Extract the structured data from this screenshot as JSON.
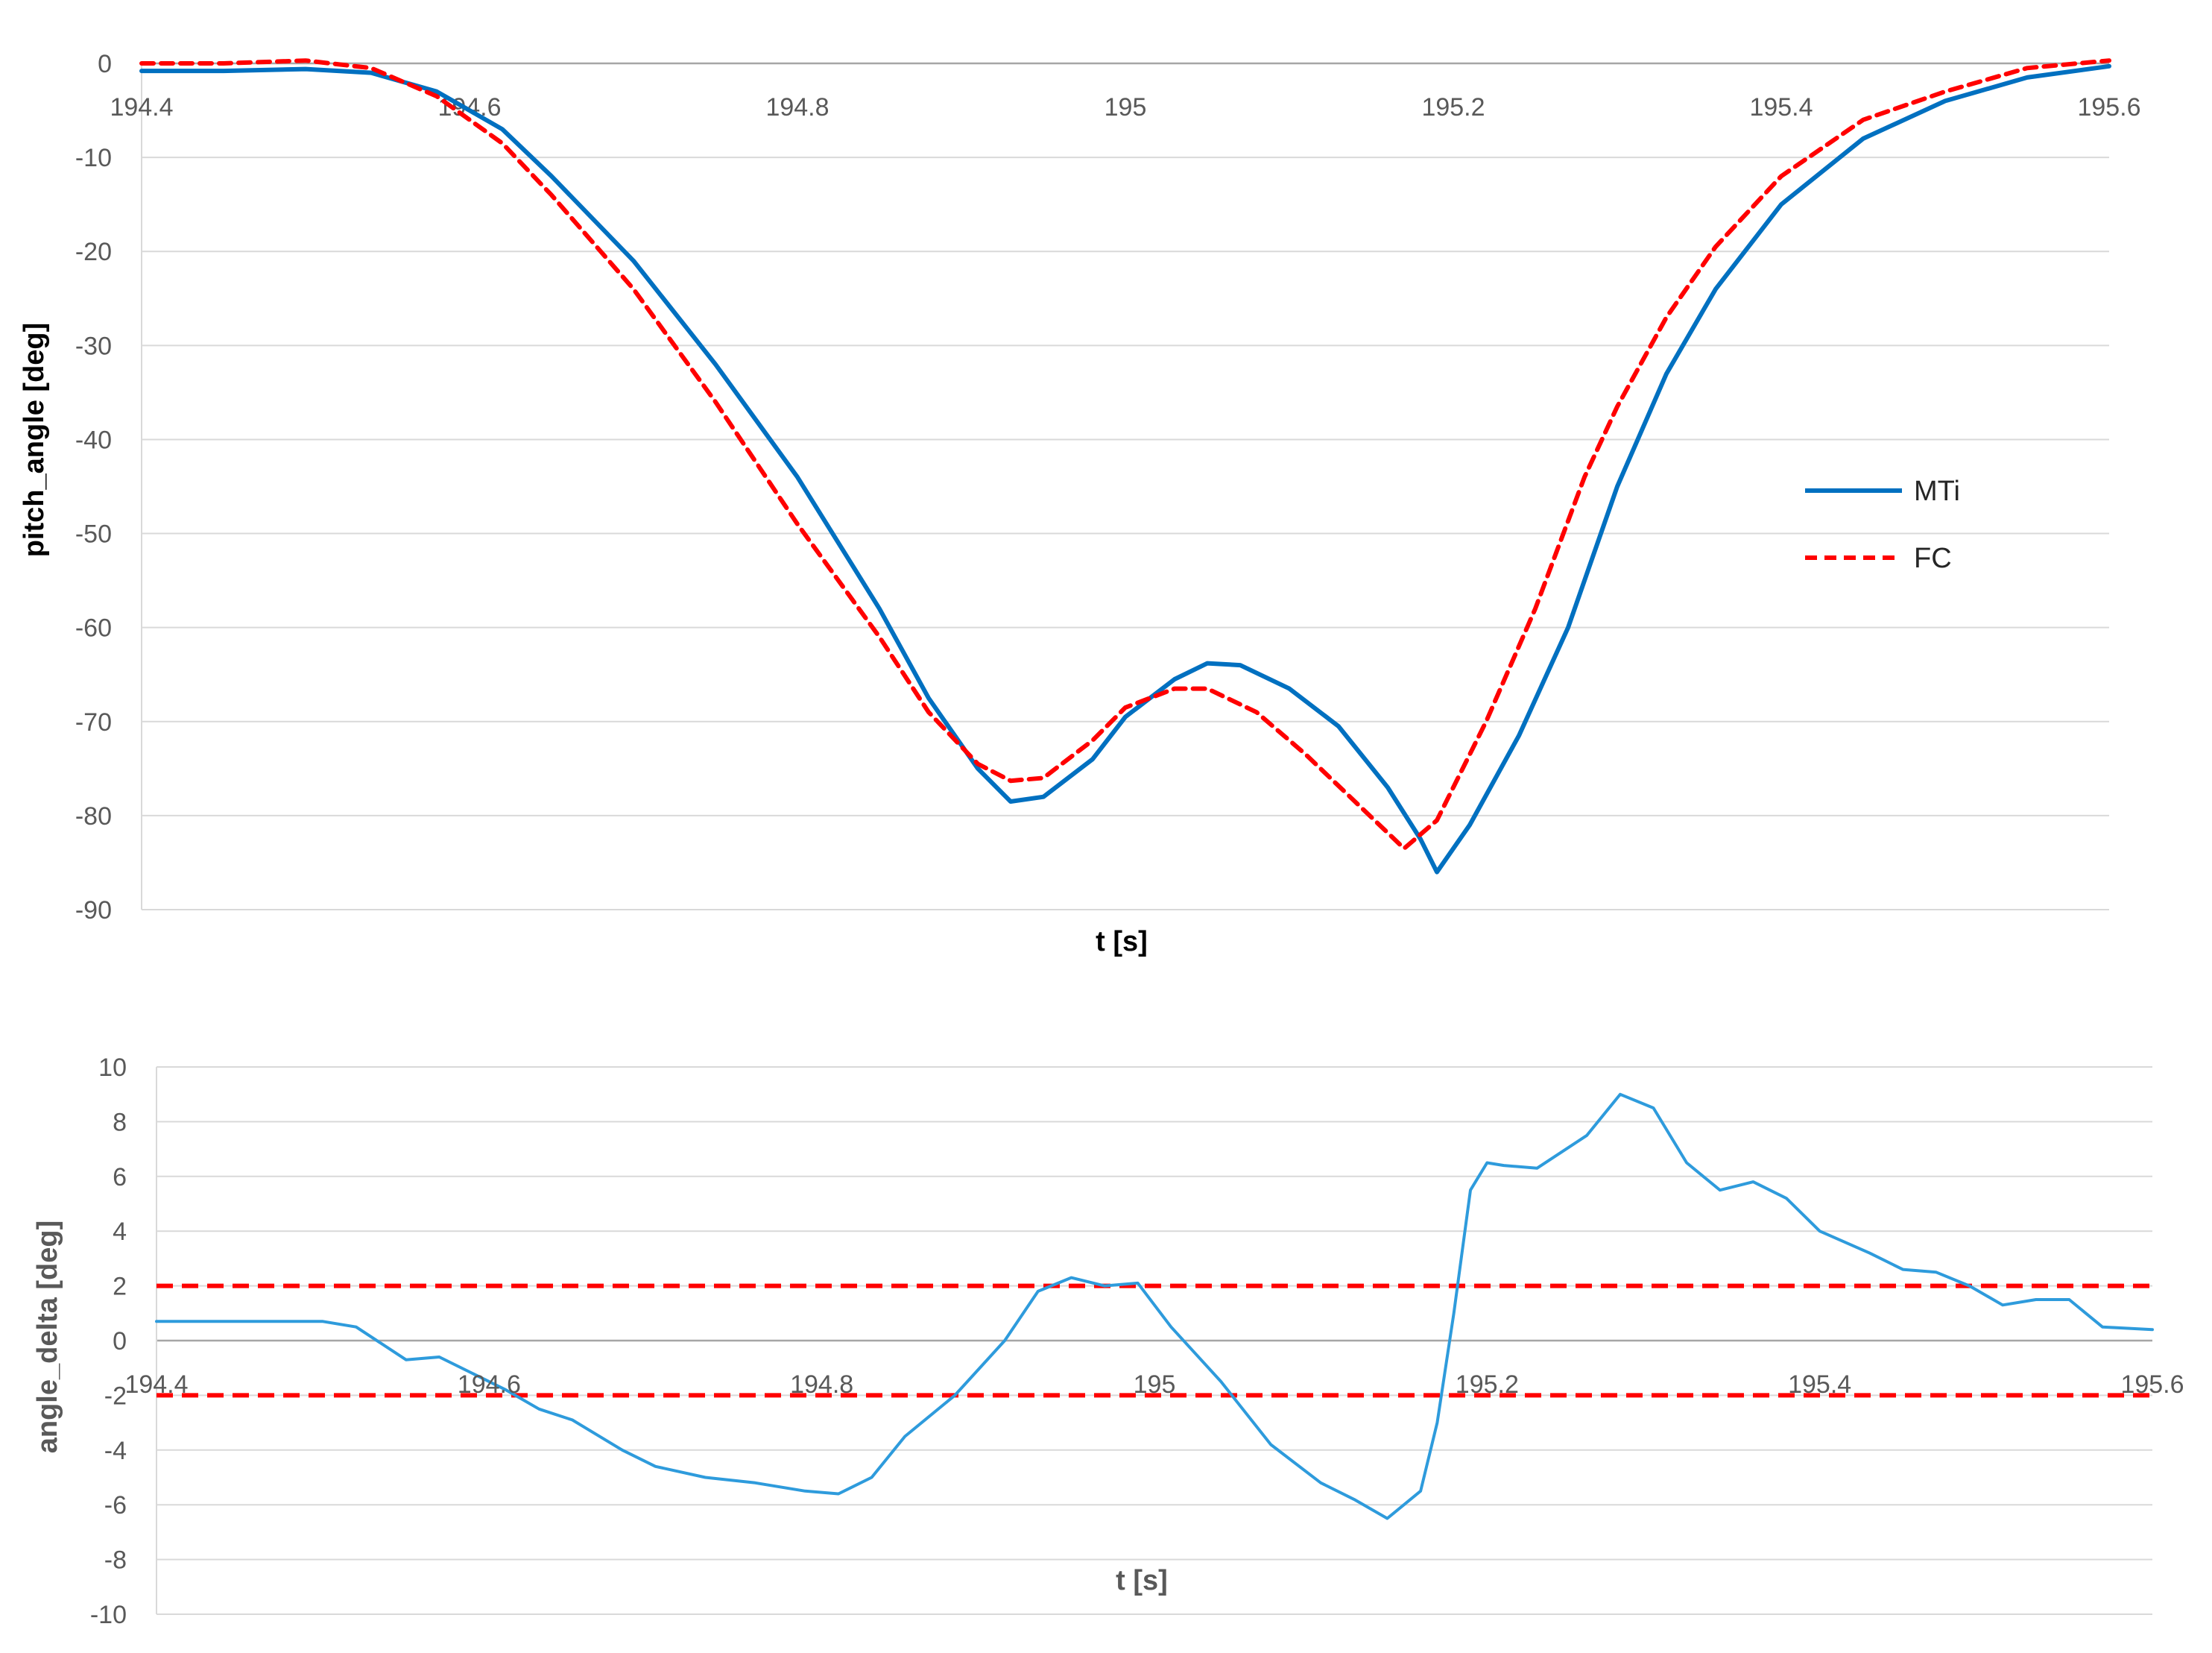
{
  "chart_data": [
    {
      "type": "line",
      "xlabel": "t [s]",
      "ylabel": "pitch_angle [deg]",
      "xlim": [
        194.4,
        195.6
      ],
      "ylim": [
        -90,
        0
      ],
      "x_ticks": [
        "194.4",
        "194.6",
        "194.8",
        "195",
        "195.2",
        "195.4",
        "195.6"
      ],
      "y_ticks": [
        "0",
        "-10",
        "-20",
        "-30",
        "-40",
        "-50",
        "-60",
        "-70",
        "-80",
        "-90"
      ],
      "grid": true,
      "legend_position": "right",
      "series": [
        {
          "name": "MTi",
          "color": "#0070c0",
          "style": "solid",
          "x": [
            194.4,
            194.45,
            194.5,
            194.54,
            194.58,
            194.62,
            194.65,
            194.7,
            194.75,
            194.8,
            194.85,
            194.88,
            194.91,
            194.93,
            194.95,
            194.98,
            195.0,
            195.03,
            195.05,
            195.07,
            195.1,
            195.13,
            195.16,
            195.18,
            195.19,
            195.21,
            195.24,
            195.27,
            195.3,
            195.33,
            195.36,
            195.4,
            195.45,
            195.5,
            195.55,
            195.6
          ],
          "y": [
            -0.8,
            -0.8,
            -0.6,
            -1.0,
            -3.0,
            -7.0,
            -12.0,
            -21.0,
            -32.0,
            -44.0,
            -58.0,
            -67.5,
            -75.0,
            -78.5,
            -78.0,
            -74.0,
            -69.5,
            -65.5,
            -63.8,
            -64.0,
            -66.5,
            -70.5,
            -77.0,
            -82.5,
            -86.0,
            -81.0,
            -71.5,
            -60.0,
            -45.0,
            -33.0,
            -24.0,
            -15.0,
            -8.0,
            -4.0,
            -1.5,
            -0.3
          ]
        },
        {
          "name": "FC",
          "color": "#ff0000",
          "style": "dashed",
          "x": [
            194.4,
            194.45,
            194.5,
            194.54,
            194.58,
            194.62,
            194.65,
            194.7,
            194.75,
            194.8,
            194.85,
            194.88,
            194.91,
            194.93,
            194.95,
            194.98,
            195.0,
            195.03,
            195.05,
            195.08,
            195.11,
            195.14,
            195.17,
            195.19,
            195.22,
            195.25,
            195.28,
            195.3,
            195.33,
            195.36,
            195.4,
            195.45,
            195.5,
            195.55,
            195.6
          ],
          "y": [
            0.0,
            0.0,
            0.3,
            -0.5,
            -3.5,
            -8.5,
            -14.0,
            -24.0,
            -36.0,
            -49.0,
            -61.0,
            -69.0,
            -74.5,
            -76.3,
            -76.0,
            -72.0,
            -68.5,
            -66.5,
            -66.5,
            -69.0,
            -73.5,
            -78.5,
            -83.5,
            -80.5,
            -70.0,
            -58.0,
            -44.0,
            -36.5,
            -27.0,
            -19.5,
            -12.0,
            -6.0,
            -3.0,
            -0.5,
            0.3
          ]
        }
      ]
    },
    {
      "type": "line",
      "xlabel": "t [s]",
      "ylabel": "angle_delta [deg]",
      "xlim": [
        194.4,
        195.6
      ],
      "ylim": [
        -10,
        10
      ],
      "x_ticks": [
        "194.4",
        "194.6",
        "194.8",
        "195",
        "195.2",
        "195.4",
        "195.6"
      ],
      "y_ticks": [
        "10",
        "8",
        "6",
        "4",
        "2",
        "0",
        "-2",
        "-4",
        "-6",
        "-8",
        "-10"
      ],
      "grid": true,
      "series": [
        {
          "color": "#2e9bdc",
          "style": "solid",
          "x": [
            194.4,
            194.43,
            194.46,
            194.5,
            194.52,
            194.55,
            194.57,
            194.59,
            194.61,
            194.63,
            194.65,
            194.68,
            194.7,
            194.73,
            194.76,
            194.79,
            194.81,
            194.83,
            194.85,
            194.88,
            194.91,
            194.93,
            194.95,
            194.97,
            194.99,
            195.01,
            195.04,
            195.07,
            195.1,
            195.12,
            195.14,
            195.16,
            195.17,
            195.18,
            195.19,
            195.2,
            195.21,
            195.23,
            195.26,
            195.28,
            195.3,
            195.32,
            195.34,
            195.36,
            195.38,
            195.4,
            195.43,
            195.45,
            195.47,
            195.49,
            195.51,
            195.53,
            195.55,
            195.57,
            195.6
          ],
          "y": [
            0.7,
            0.7,
            0.7,
            0.7,
            0.5,
            -0.7,
            -0.6,
            -1.2,
            -1.8,
            -2.5,
            -2.9,
            -4.0,
            -4.6,
            -5.0,
            -5.2,
            -5.5,
            -5.6,
            -5.0,
            -3.5,
            -2.0,
            0.0,
            1.8,
            2.3,
            2.0,
            2.1,
            0.5,
            -1.5,
            -3.8,
            -5.2,
            -5.8,
            -6.5,
            -5.5,
            -3.0,
            1.0,
            5.5,
            6.5,
            6.4,
            6.3,
            7.5,
            9.0,
            8.5,
            6.5,
            5.5,
            5.8,
            5.2,
            4.0,
            3.2,
            2.6,
            2.5,
            2.0,
            1.3,
            1.5,
            1.5,
            0.5,
            0.4
          ]
        }
      ],
      "reference_lines": [
        {
          "y": 2,
          "color": "#ff0000",
          "style": "dashed"
        },
        {
          "y": -2,
          "color": "#ff0000",
          "style": "dashed"
        }
      ]
    }
  ]
}
